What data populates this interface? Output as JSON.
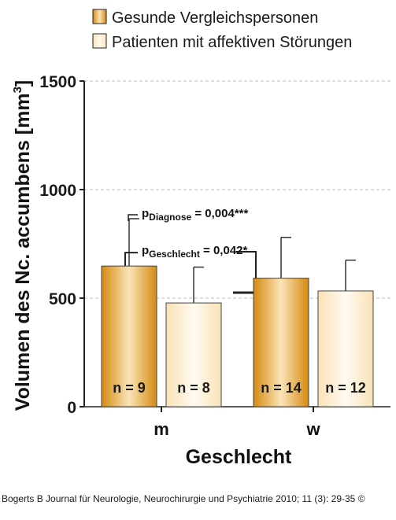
{
  "chart_data": {
    "type": "bar",
    "ylabel_main": "Volumen des Nc. accumbens [mm",
    "ylabel_sup": "3",
    "ylabel_end": "]",
    "xlabel": "Geschlecht",
    "categories": [
      "m",
      "w"
    ],
    "ylim": [
      0,
      1500
    ],
    "yticks": [
      "0",
      "500",
      "1000",
      "1500"
    ],
    "ytick_values": [
      0,
      500,
      1000,
      1500
    ],
    "grid": true,
    "legend_position": "top",
    "series": [
      {
        "name": "Gesunde Vergleichspersonen",
        "color": "#e4a12c",
        "values": [
          648,
          592
        ],
        "errors": [
          218,
          188
        ],
        "n_labels": [
          "n = 9",
          "n = 14"
        ]
      },
      {
        "name": "Patienten mit affektiven Störungen",
        "color": "#fbe8c4",
        "values": [
          478,
          533
        ],
        "errors": [
          165,
          142
        ],
        "n_labels": [
          "n = 8",
          "n = 12"
        ]
      }
    ],
    "annotations": [
      {
        "prefix": "p",
        "sub": "Diagnose",
        "text": " = 0,004***"
      },
      {
        "prefix": "p",
        "sub": "Geschlecht",
        "text": " = 0,042*"
      }
    ]
  },
  "footer": "Bogerts B Journal für Neurologie, Neurochirurgie und Psychiatrie 2010; 11 (3): 29-35 ©"
}
